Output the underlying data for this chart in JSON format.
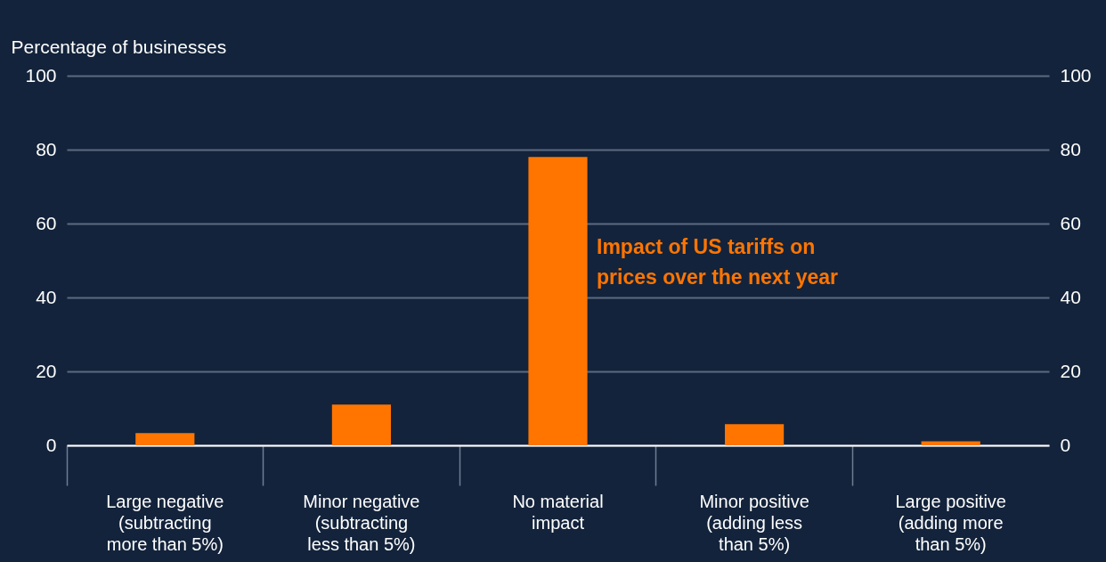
{
  "chart_data": {
    "type": "bar",
    "ylabel": "Percentage of businesses",
    "categories": [
      "Large negative (subtracting more than 5%)",
      "Minor negative (subtracting less than 5%)",
      "No material impact",
      "Minor positive (adding less than 5%)",
      "Large positive (adding more than 5%)"
    ],
    "series": [
      {
        "name": "Impact of US tariffs on prices over the next year",
        "color": "#ff7500",
        "values": [
          3.3,
          11,
          78,
          5.7,
          1.1
        ]
      }
    ],
    "ylim": [
      0,
      100
    ],
    "yticks": [
      0,
      20,
      40,
      60,
      80,
      100
    ],
    "y2lim": [
      0,
      100
    ],
    "y2ticks": [
      0,
      20,
      40,
      60,
      80,
      100
    ],
    "grid": "y"
  }
}
